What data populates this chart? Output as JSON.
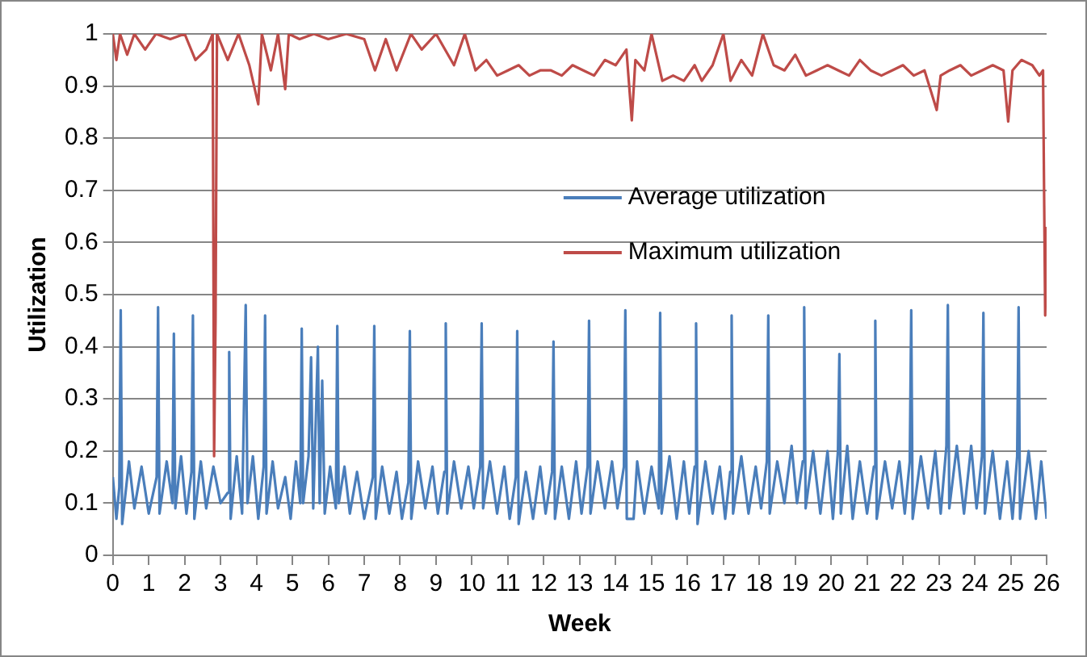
{
  "chart_data": {
    "type": "line",
    "xlabel": "Week",
    "ylabel": "Utilization",
    "xlim": [
      0,
      26
    ],
    "xticks": [
      0,
      1,
      2,
      3,
      4,
      5,
      6,
      7,
      8,
      9,
      10,
      11,
      12,
      13,
      14,
      15,
      16,
      17,
      18,
      19,
      20,
      21,
      22,
      23,
      24,
      25,
      26
    ],
    "ylim": [
      0,
      1
    ],
    "yticks": [
      0,
      0.1,
      0.2,
      0.3,
      0.4,
      0.5,
      0.6,
      0.7,
      0.8,
      0.9,
      1
    ],
    "grid": "y",
    "legend": "center",
    "marker": "none",
    "line_style": "solid",
    "series": [
      {
        "name": "Average utilization",
        "color": "#4a7ebb",
        "x": [
          0,
          0.1,
          0.18,
          0.22,
          0.26,
          0.45,
          0.6,
          0.8,
          1.0,
          1.22,
          1.26,
          1.3,
          1.5,
          1.66,
          1.7,
          1.74,
          1.9,
          2.05,
          2.19,
          2.23,
          2.27,
          2.45,
          2.6,
          2.8,
          3.0,
          3.2,
          3.24,
          3.28,
          3.45,
          3.6,
          3.7,
          3.75,
          3.9,
          4.05,
          4.2,
          4.24,
          4.28,
          4.45,
          4.6,
          4.8,
          4.95,
          5.1,
          5.22,
          5.26,
          5.3,
          5.45,
          5.52,
          5.58,
          5.71,
          5.76,
          5.83,
          5.9,
          6.05,
          6.21,
          6.25,
          6.29,
          6.45,
          6.6,
          6.8,
          7.0,
          7.24,
          7.28,
          7.32,
          7.5,
          7.7,
          7.9,
          8.05,
          8.23,
          8.27,
          8.31,
          8.5,
          8.7,
          8.9,
          9.05,
          9.23,
          9.27,
          9.31,
          9.5,
          9.7,
          9.9,
          10.05,
          10.23,
          10.27,
          10.31,
          10.5,
          10.7,
          10.9,
          11.05,
          11.22,
          11.26,
          11.3,
          11.5,
          11.7,
          11.9,
          12.05,
          12.23,
          12.27,
          12.31,
          12.5,
          12.7,
          12.9,
          13.05,
          13.22,
          13.26,
          13.3,
          13.5,
          13.7,
          13.9,
          14.05,
          14.23,
          14.27,
          14.31,
          14.5,
          14.6,
          14.8,
          15.0,
          15.2,
          15.24,
          15.28,
          15.5,
          15.7,
          15.9,
          16.05,
          16.2,
          16.24,
          16.28,
          16.5,
          16.7,
          16.9,
          17.05,
          17.19,
          17.23,
          17.27,
          17.5,
          17.7,
          17.9,
          18.05,
          18.21,
          18.25,
          18.29,
          18.5,
          18.7,
          18.9,
          19.05,
          19.21,
          19.25,
          19.29,
          19.5,
          19.7,
          19.9,
          20.05,
          20.19,
          20.23,
          20.27,
          20.45,
          20.6,
          20.8,
          21.0,
          21.19,
          21.23,
          21.27,
          21.5,
          21.7,
          21.9,
          22.05,
          22.19,
          22.23,
          22.27,
          22.5,
          22.7,
          22.9,
          23.05,
          23.21,
          23.25,
          23.29,
          23.5,
          23.7,
          23.9,
          24.05,
          24.2,
          24.24,
          24.28,
          24.5,
          24.7,
          24.9,
          25.05,
          25.18,
          25.22,
          25.26,
          25.5,
          25.7,
          25.85,
          26.0
        ],
        "values": [
          0.15,
          0.07,
          0.13,
          0.47,
          0.06,
          0.18,
          0.09,
          0.17,
          0.08,
          0.15,
          0.476,
          0.08,
          0.18,
          0.1,
          0.425,
          0.09,
          0.19,
          0.08,
          0.16,
          0.46,
          0.07,
          0.18,
          0.09,
          0.17,
          0.1,
          0.12,
          0.39,
          0.07,
          0.19,
          0.08,
          0.48,
          0.1,
          0.19,
          0.07,
          0.17,
          0.46,
          0.08,
          0.18,
          0.09,
          0.15,
          0.07,
          0.18,
          0.1,
          0.435,
          0.1,
          0.19,
          0.38,
          0.09,
          0.4,
          0.1,
          0.335,
          0.08,
          0.17,
          0.09,
          0.44,
          0.1,
          0.17,
          0.08,
          0.16,
          0.07,
          0.15,
          0.44,
          0.07,
          0.17,
          0.08,
          0.16,
          0.07,
          0.14,
          0.43,
          0.07,
          0.18,
          0.09,
          0.17,
          0.08,
          0.16,
          0.445,
          0.08,
          0.18,
          0.09,
          0.17,
          0.09,
          0.17,
          0.445,
          0.09,
          0.18,
          0.08,
          0.17,
          0.07,
          0.15,
          0.43,
          0.06,
          0.16,
          0.07,
          0.17,
          0.08,
          0.16,
          0.41,
          0.07,
          0.17,
          0.07,
          0.18,
          0.08,
          0.17,
          0.45,
          0.08,
          0.18,
          0.09,
          0.18,
          0.09,
          0.17,
          0.47,
          0.07,
          0.07,
          0.18,
          0.08,
          0.17,
          0.09,
          0.465,
          0.08,
          0.19,
          0.07,
          0.18,
          0.08,
          0.17,
          0.445,
          0.06,
          0.18,
          0.08,
          0.17,
          0.07,
          0.16,
          0.46,
          0.08,
          0.19,
          0.08,
          0.17,
          0.09,
          0.18,
          0.46,
          0.08,
          0.18,
          0.1,
          0.21,
          0.1,
          0.18,
          0.476,
          0.09,
          0.2,
          0.08,
          0.2,
          0.07,
          0.2,
          0.386,
          0.08,
          0.21,
          0.07,
          0.18,
          0.08,
          0.17,
          0.45,
          0.07,
          0.18,
          0.09,
          0.18,
          0.08,
          0.18,
          0.47,
          0.07,
          0.19,
          0.09,
          0.2,
          0.08,
          0.21,
          0.48,
          0.09,
          0.21,
          0.08,
          0.21,
          0.09,
          0.19,
          0.465,
          0.08,
          0.2,
          0.07,
          0.18,
          0.07,
          0.19,
          0.476,
          0.07,
          0.2,
          0.07,
          0.18,
          0.07
        ]
      },
      {
        "name": "Maximum utilization",
        "color": "#be4b48",
        "x": [
          0,
          0.1,
          0.2,
          0.4,
          0.6,
          0.9,
          1.2,
          1.6,
          2.0,
          2.3,
          2.6,
          2.78,
          2.82,
          2.86,
          2.9,
          3.2,
          3.5,
          3.8,
          4.05,
          4.15,
          4.4,
          4.6,
          4.8,
          4.9,
          5.2,
          5.6,
          6.0,
          6.5,
          7.0,
          7.3,
          7.6,
          7.9,
          8.3,
          8.6,
          9.0,
          9.5,
          9.8,
          10.1,
          10.4,
          10.7,
          11.0,
          11.3,
          11.6,
          11.9,
          12.2,
          12.5,
          12.8,
          13.1,
          13.4,
          13.7,
          14.0,
          14.3,
          14.45,
          14.55,
          14.8,
          15.0,
          15.3,
          15.6,
          15.9,
          16.2,
          16.4,
          16.7,
          17.0,
          17.2,
          17.5,
          17.8,
          18.1,
          18.4,
          18.7,
          19.0,
          19.3,
          19.6,
          19.9,
          20.2,
          20.5,
          20.8,
          21.1,
          21.4,
          21.7,
          22.0,
          22.3,
          22.6,
          22.94,
          23.05,
          23.3,
          23.6,
          23.9,
          24.2,
          24.5,
          24.8,
          24.93,
          25.05,
          25.3,
          25.6,
          25.8,
          25.9,
          25.96,
          26.0
        ],
        "values": [
          1,
          0.95,
          1,
          0.96,
          1,
          0.97,
          1,
          0.99,
          1,
          0.95,
          0.97,
          1,
          0.19,
          0.45,
          1,
          0.95,
          1,
          0.94,
          0.865,
          1,
          0.93,
          1,
          0.894,
          1,
          0.99,
          1,
          0.99,
          1,
          0.99,
          0.93,
          0.99,
          0.93,
          1,
          0.97,
          1,
          0.94,
          1,
          0.93,
          0.95,
          0.92,
          0.93,
          0.94,
          0.92,
          0.93,
          0.93,
          0.92,
          0.94,
          0.93,
          0.92,
          0.95,
          0.94,
          0.97,
          0.834,
          0.95,
          0.93,
          1,
          0.91,
          0.92,
          0.91,
          0.94,
          0.91,
          0.94,
          1,
          0.91,
          0.95,
          0.92,
          1,
          0.94,
          0.93,
          0.96,
          0.92,
          0.93,
          0.94,
          0.93,
          0.92,
          0.95,
          0.93,
          0.92,
          0.93,
          0.94,
          0.92,
          0.93,
          0.854,
          0.92,
          0.93,
          0.94,
          0.92,
          0.93,
          0.94,
          0.93,
          0.832,
          0.93,
          0.95,
          0.94,
          0.92,
          0.93,
          0.46,
          0.63
        ]
      }
    ]
  }
}
